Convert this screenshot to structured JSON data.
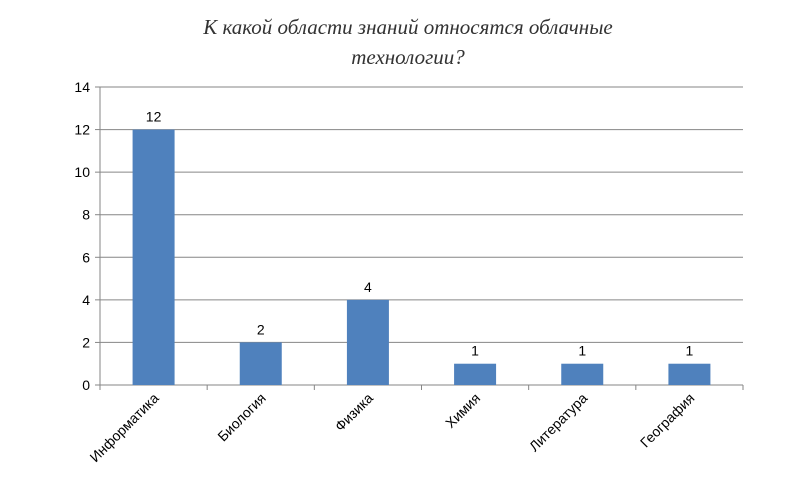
{
  "chart_data": {
    "type": "bar",
    "title_lines": [
      "К какой области знаний относятся облачные",
      "технологии?"
    ],
    "categories": [
      "Информатика",
      "Биология",
      "Физика",
      "Химия",
      "Литература",
      "География"
    ],
    "values": [
      12,
      2,
      4,
      1,
      1,
      1
    ],
    "xlabel": "",
    "ylabel": "",
    "ylim": [
      0,
      14
    ],
    "yticks": [
      0,
      2,
      4,
      6,
      8,
      10,
      12,
      14
    ],
    "grid": true,
    "legend": "none",
    "bar_color": "#4f81bd"
  }
}
